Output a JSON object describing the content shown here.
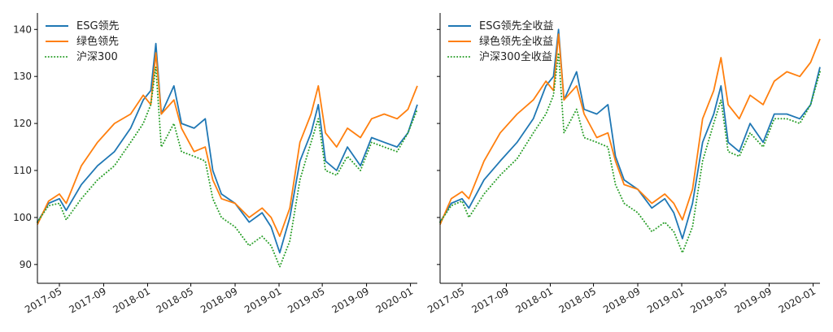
{
  "chart_data": [
    {
      "type": "line",
      "ylim": [
        86,
        143.5
      ],
      "xlim": [
        "2017-03-01",
        "2020-01-20"
      ],
      "y_ticks": [
        90,
        100,
        110,
        120,
        130,
        140
      ],
      "x_ticks": [
        "2017-05",
        "2017-09",
        "2018-01",
        "2018-05",
        "2018-09",
        "2019-01",
        "2019-05",
        "2019-09",
        "2020-01"
      ],
      "legend": "top-left",
      "grid": false,
      "series": [
        {
          "name": "ESG领先",
          "color": "#1f77b4",
          "style": "solid",
          "points": [
            [
              "2017-03-01",
              99
            ],
            [
              "2017-04-01",
              103
            ],
            [
              "2017-05-01",
              104
            ],
            [
              "2017-05-20",
              101.5
            ],
            [
              "2017-07-01",
              107
            ],
            [
              "2017-08-15",
              111
            ],
            [
              "2017-10-01",
              114
            ],
            [
              "2017-11-15",
              119
            ],
            [
              "2017-12-20",
              125
            ],
            [
              "2018-01-10",
              127
            ],
            [
              "2018-01-24",
              137
            ],
            [
              "2018-02-08",
              122
            ],
            [
              "2018-03-15",
              128
            ],
            [
              "2018-04-05",
              120
            ],
            [
              "2018-05-10",
              119
            ],
            [
              "2018-06-10",
              121
            ],
            [
              "2018-07-01",
              110
            ],
            [
              "2018-07-25",
              105
            ],
            [
              "2018-09-01",
              103
            ],
            [
              "2018-10-10",
              99
            ],
            [
              "2018-11-15",
              101
            ],
            [
              "2018-12-10",
              98
            ],
            [
              "2019-01-03",
              92.5
            ],
            [
              "2019-01-31",
              100
            ],
            [
              "2019-02-28",
              112
            ],
            [
              "2019-03-31",
              118
            ],
            [
              "2019-04-20",
              124
            ],
            [
              "2019-05-10",
              112
            ],
            [
              "2019-06-10",
              110
            ],
            [
              "2019-07-10",
              115
            ],
            [
              "2019-08-15",
              111
            ],
            [
              "2019-09-15",
              117
            ],
            [
              "2019-10-20",
              116
            ],
            [
              "2019-11-25",
              115
            ],
            [
              "2019-12-25",
              118
            ],
            [
              "2020-01-20",
              124
            ]
          ]
        },
        {
          "name": "绿色领先",
          "color": "#ff7f0e",
          "style": "solid",
          "points": [
            [
              "2017-03-01",
              98.5
            ],
            [
              "2017-04-01",
              103.5
            ],
            [
              "2017-05-01",
              105
            ],
            [
              "2017-05-20",
              103
            ],
            [
              "2017-07-01",
              111
            ],
            [
              "2017-08-15",
              116
            ],
            [
              "2017-10-01",
              120
            ],
            [
              "2017-11-15",
              122
            ],
            [
              "2017-12-20",
              126
            ],
            [
              "2018-01-10",
              124
            ],
            [
              "2018-01-24",
              135
            ],
            [
              "2018-02-08",
              122
            ],
            [
              "2018-03-15",
              125
            ],
            [
              "2018-04-05",
              119
            ],
            [
              "2018-05-10",
              114
            ],
            [
              "2018-06-10",
              115
            ],
            [
              "2018-07-01",
              108
            ],
            [
              "2018-07-25",
              104
            ],
            [
              "2018-09-01",
              103
            ],
            [
              "2018-10-10",
              100
            ],
            [
              "2018-11-15",
              102
            ],
            [
              "2018-12-10",
              100
            ],
            [
              "2019-01-03",
              96
            ],
            [
              "2019-01-31",
              102
            ],
            [
              "2019-02-28",
              116
            ],
            [
              "2019-03-31",
              122
            ],
            [
              "2019-04-20",
              128
            ],
            [
              "2019-05-10",
              118
            ],
            [
              "2019-06-10",
              115
            ],
            [
              "2019-07-10",
              119
            ],
            [
              "2019-08-15",
              117
            ],
            [
              "2019-09-15",
              121
            ],
            [
              "2019-10-20",
              122
            ],
            [
              "2019-11-25",
              121
            ],
            [
              "2019-12-25",
              123
            ],
            [
              "2020-01-20",
              128
            ]
          ]
        },
        {
          "name": "沪深300",
          "color": "#2ca02c",
          "style": "dotted",
          "points": [
            [
              "2017-03-01",
              99
            ],
            [
              "2017-04-01",
              102.5
            ],
            [
              "2017-05-01",
              103
            ],
            [
              "2017-05-20",
              99.5
            ],
            [
              "2017-07-01",
              104
            ],
            [
              "2017-08-15",
              108
            ],
            [
              "2017-10-01",
              111
            ],
            [
              "2017-11-15",
              116
            ],
            [
              "2017-12-20",
              120
            ],
            [
              "2018-01-10",
              124
            ],
            [
              "2018-01-24",
              132
            ],
            [
              "2018-02-08",
              115
            ],
            [
              "2018-03-15",
              120
            ],
            [
              "2018-04-05",
              114
            ],
            [
              "2018-05-10",
              113
            ],
            [
              "2018-06-10",
              112
            ],
            [
              "2018-07-01",
              104
            ],
            [
              "2018-07-25",
              100
            ],
            [
              "2018-09-01",
              98
            ],
            [
              "2018-10-10",
              94
            ],
            [
              "2018-11-15",
              96
            ],
            [
              "2018-12-10",
              94
            ],
            [
              "2019-01-03",
              89.5
            ],
            [
              "2019-01-31",
              95
            ],
            [
              "2019-02-28",
              108
            ],
            [
              "2019-03-31",
              116
            ],
            [
              "2019-04-20",
              121
            ],
            [
              "2019-05-10",
              110
            ],
            [
              "2019-06-10",
              109
            ],
            [
              "2019-07-10",
              113
            ],
            [
              "2019-08-15",
              110
            ],
            [
              "2019-09-15",
              116
            ],
            [
              "2019-10-20",
              115
            ],
            [
              "2019-11-25",
              114
            ],
            [
              "2019-12-25",
              118
            ],
            [
              "2020-01-20",
              123
            ]
          ]
        }
      ]
    },
    {
      "type": "line",
      "ylim": [
        86,
        143.5
      ],
      "xlim": [
        "2017-03-01",
        "2020-01-20"
      ],
      "y_ticks": [
        90,
        100,
        110,
        120,
        130,
        140
      ],
      "x_ticks": [
        "2017-05",
        "2017-09",
        "2018-01",
        "2018-05",
        "2018-09",
        "2019-01",
        "2019-05",
        "2019-09",
        "2020-01"
      ],
      "legend": "top-left",
      "grid": false,
      "series": [
        {
          "name": "ESG领先全收益",
          "color": "#1f77b4",
          "style": "solid",
          "points": [
            [
              "2017-03-01",
              99
            ],
            [
              "2017-04-01",
              103
            ],
            [
              "2017-05-01",
              104
            ],
            [
              "2017-05-20",
              102
            ],
            [
              "2017-07-01",
              108
            ],
            [
              "2017-08-15",
              112
            ],
            [
              "2017-10-01",
              116
            ],
            [
              "2017-11-15",
              121
            ],
            [
              "2017-12-20",
              128
            ],
            [
              "2018-01-10",
              130
            ],
            [
              "2018-01-24",
              140
            ],
            [
              "2018-02-08",
              125
            ],
            [
              "2018-03-15",
              131
            ],
            [
              "2018-04-05",
              123
            ],
            [
              "2018-05-10",
              122
            ],
            [
              "2018-06-10",
              124
            ],
            [
              "2018-07-01",
              113
            ],
            [
              "2018-07-25",
              108
            ],
            [
              "2018-09-01",
              106
            ],
            [
              "2018-10-10",
              102
            ],
            [
              "2018-11-15",
              104
            ],
            [
              "2018-12-10",
              101
            ],
            [
              "2019-01-03",
              95.5
            ],
            [
              "2019-01-31",
              103
            ],
            [
              "2019-02-28",
              116
            ],
            [
              "2019-03-31",
              122
            ],
            [
              "2019-04-20",
              128
            ],
            [
              "2019-05-10",
              116
            ],
            [
              "2019-06-10",
              114
            ],
            [
              "2019-07-10",
              120
            ],
            [
              "2019-08-15",
              116
            ],
            [
              "2019-09-15",
              122
            ],
            [
              "2019-10-20",
              122
            ],
            [
              "2019-11-25",
              121
            ],
            [
              "2019-12-25",
              124
            ],
            [
              "2020-01-20",
              132
            ]
          ]
        },
        {
          "name": "绿色领先全收益",
          "color": "#ff7f0e",
          "style": "solid",
          "points": [
            [
              "2017-03-01",
              98.5
            ],
            [
              "2017-04-01",
              104
            ],
            [
              "2017-05-01",
              105.5
            ],
            [
              "2017-05-20",
              104
            ],
            [
              "2017-07-01",
              112
            ],
            [
              "2017-08-15",
              118
            ],
            [
              "2017-10-01",
              122
            ],
            [
              "2017-11-15",
              125
            ],
            [
              "2017-12-20",
              129
            ],
            [
              "2018-01-10",
              127
            ],
            [
              "2018-01-24",
              139
            ],
            [
              "2018-02-08",
              125
            ],
            [
              "2018-03-15",
              128
            ],
            [
              "2018-04-05",
              122
            ],
            [
              "2018-05-10",
              117
            ],
            [
              "2018-06-10",
              118
            ],
            [
              "2018-07-01",
              112
            ],
            [
              "2018-07-25",
              107
            ],
            [
              "2018-09-01",
              106
            ],
            [
              "2018-10-10",
              103
            ],
            [
              "2018-11-15",
              105
            ],
            [
              "2018-12-10",
              103
            ],
            [
              "2019-01-03",
              99.5
            ],
            [
              "2019-01-31",
              106
            ],
            [
              "2019-02-28",
              121
            ],
            [
              "2019-03-31",
              127
            ],
            [
              "2019-04-20",
              134
            ],
            [
              "2019-05-10",
              124
            ],
            [
              "2019-06-10",
              121
            ],
            [
              "2019-07-10",
              126
            ],
            [
              "2019-08-15",
              124
            ],
            [
              "2019-09-15",
              129
            ],
            [
              "2019-10-20",
              131
            ],
            [
              "2019-11-25",
              130
            ],
            [
              "2019-12-25",
              133
            ],
            [
              "2020-01-20",
              138
            ]
          ]
        },
        {
          "name": "沪深300全收益",
          "color": "#2ca02c",
          "style": "dotted",
          "points": [
            [
              "2017-03-01",
              99
            ],
            [
              "2017-04-01",
              102.5
            ],
            [
              "2017-05-01",
              103.5
            ],
            [
              "2017-05-20",
              100
            ],
            [
              "2017-07-01",
              105
            ],
            [
              "2017-08-15",
              109
            ],
            [
              "2017-10-01",
              112.5
            ],
            [
              "2017-11-15",
              118
            ],
            [
              "2017-12-20",
              122
            ],
            [
              "2018-01-10",
              126
            ],
            [
              "2018-01-24",
              135
            ],
            [
              "2018-02-08",
              118
            ],
            [
              "2018-03-15",
              123
            ],
            [
              "2018-04-05",
              117
            ],
            [
              "2018-05-10",
              116
            ],
            [
              "2018-06-10",
              115
            ],
            [
              "2018-07-01",
              107
            ],
            [
              "2018-07-25",
              103
            ],
            [
              "2018-09-01",
              101
            ],
            [
              "2018-10-10",
              97
            ],
            [
              "2018-11-15",
              99
            ],
            [
              "2018-12-10",
              97
            ],
            [
              "2019-01-03",
              92.5
            ],
            [
              "2019-01-31",
              98
            ],
            [
              "2019-02-28",
              112
            ],
            [
              "2019-03-31",
              120
            ],
            [
              "2019-04-20",
              125
            ],
            [
              "2019-05-10",
              114
            ],
            [
              "2019-06-10",
              113
            ],
            [
              "2019-07-10",
              118
            ],
            [
              "2019-08-15",
              115
            ],
            [
              "2019-09-15",
              121
            ],
            [
              "2019-10-20",
              121
            ],
            [
              "2019-11-25",
              120
            ],
            [
              "2019-12-25",
              124
            ],
            [
              "2020-01-20",
              131
            ]
          ]
        }
      ]
    }
  ]
}
